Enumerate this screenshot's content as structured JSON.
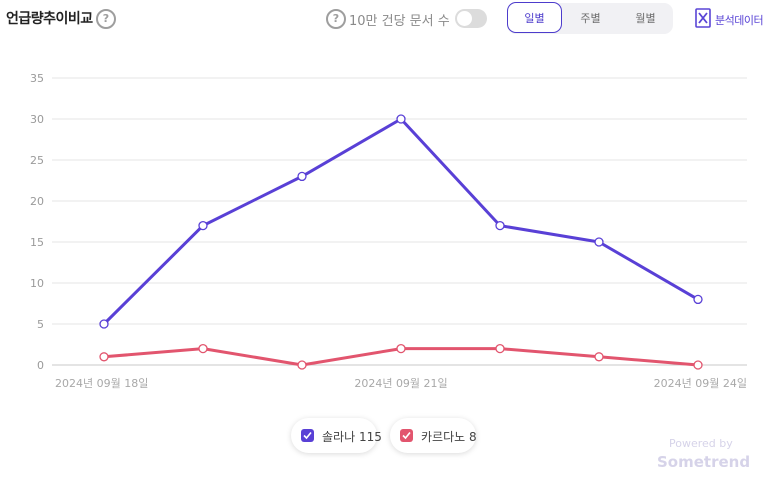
{
  "header": {
    "title": "언급량추이비교",
    "toggle_label": "10만 건당 문서 수",
    "toggle_on": false,
    "periods": [
      "일별",
      "주별",
      "월별"
    ],
    "active_period": "일별",
    "export_label": "분석데이터"
  },
  "chart_data": {
    "type": "line",
    "x": [
      "2024년 09월 18일",
      "2024년 09월 19일",
      "2024년 09월 20일",
      "2024년 09월 21일",
      "2024년 09월 22일",
      "2024년 09월 23일",
      "2024년 09월 24일"
    ],
    "x_tick_labels": [
      "2024년 09월 18일",
      "2024년 09월 21일",
      "2024년 09월 24일"
    ],
    "yticks": [
      "0",
      "5",
      "10",
      "15",
      "20",
      "25",
      "30",
      "35"
    ],
    "ylim": [
      0,
      35
    ],
    "grid": true,
    "series": [
      {
        "name": "솔라나",
        "total": "115",
        "color": "#5940d6",
        "values": [
          5,
          17,
          23,
          30,
          17,
          15,
          8
        ]
      },
      {
        "name": "카르다노",
        "total": "8",
        "color": "#e2556e",
        "values": [
          1,
          2,
          0,
          2,
          2,
          1,
          0
        ]
      }
    ],
    "legend_position": "bottom"
  },
  "watermark": {
    "powered_by": "Powered by",
    "brand": "Sometrend"
  }
}
